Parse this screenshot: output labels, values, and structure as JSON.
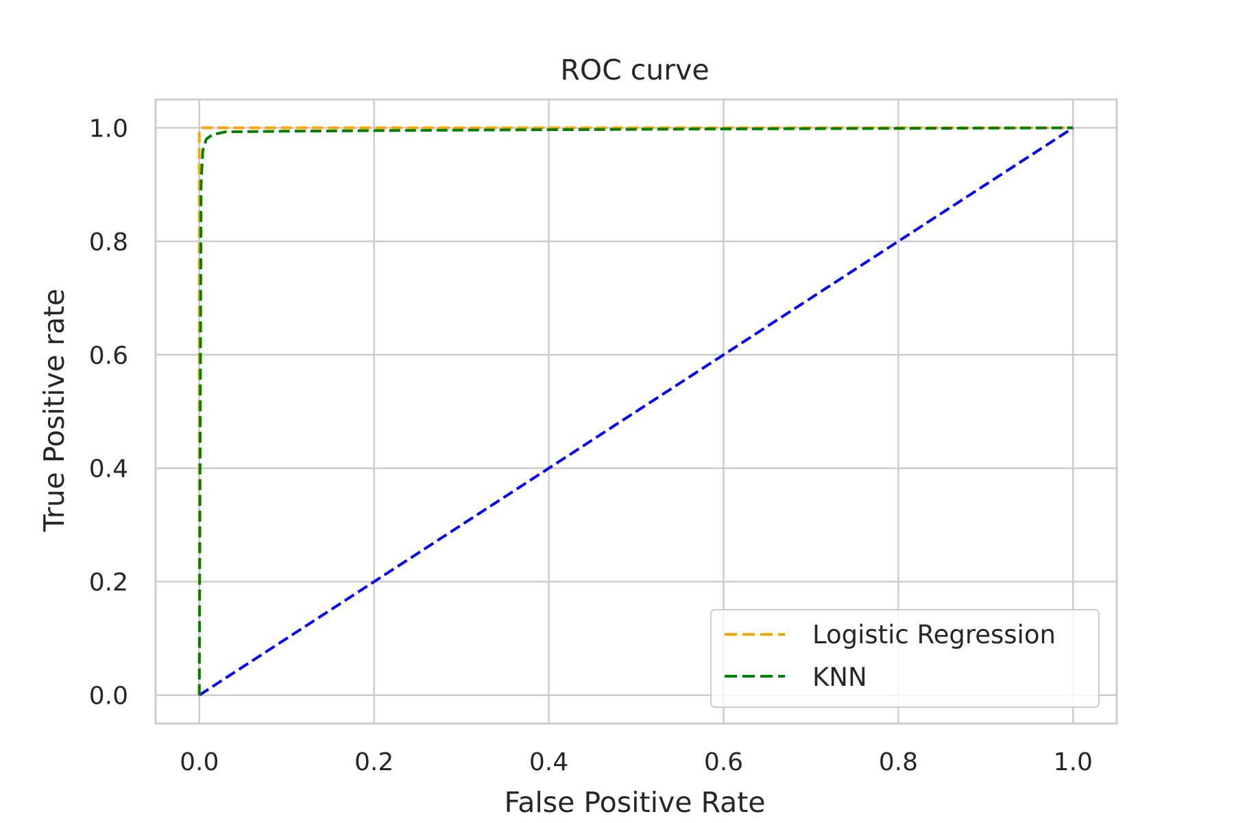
{
  "chart_data": {
    "type": "line",
    "title": "ROC curve",
    "xlabel": "False Positive Rate",
    "ylabel": "True Positive rate",
    "xlim": [
      -0.05,
      1.05
    ],
    "ylim": [
      -0.05,
      1.05
    ],
    "xticks": [
      0.0,
      0.2,
      0.4,
      0.6,
      0.8,
      1.0
    ],
    "yticks": [
      0.0,
      0.2,
      0.4,
      0.6,
      0.8,
      1.0
    ],
    "tick_labels_x": [
      "0.0",
      "0.2",
      "0.4",
      "0.6",
      "0.8",
      "1.0"
    ],
    "tick_labels_y": [
      "0.0",
      "0.2",
      "0.4",
      "0.6",
      "0.8",
      "1.0"
    ],
    "grid": true,
    "legend_position": "lower-right",
    "series": [
      {
        "name": "Logistic Regression",
        "color": "#ffa500",
        "style": "dashed",
        "x": [
          0.0,
          0.0,
          0.0,
          0.003,
          1.0
        ],
        "y": [
          0.0,
          0.95,
          0.99,
          1.0,
          1.0
        ]
      },
      {
        "name": "KNN",
        "color": "#008000",
        "style": "dashed",
        "x": [
          0.0,
          0.002,
          0.004,
          0.008,
          0.015,
          0.03,
          0.1,
          0.3,
          0.6,
          1.0
        ],
        "y": [
          0.0,
          0.9,
          0.96,
          0.98,
          0.988,
          0.993,
          0.994,
          0.996,
          0.998,
          1.0
        ]
      },
      {
        "color": "#0000ff",
        "style": "dashed",
        "x": [
          0.0,
          1.0
        ],
        "y": [
          0.0,
          1.0
        ]
      }
    ]
  }
}
